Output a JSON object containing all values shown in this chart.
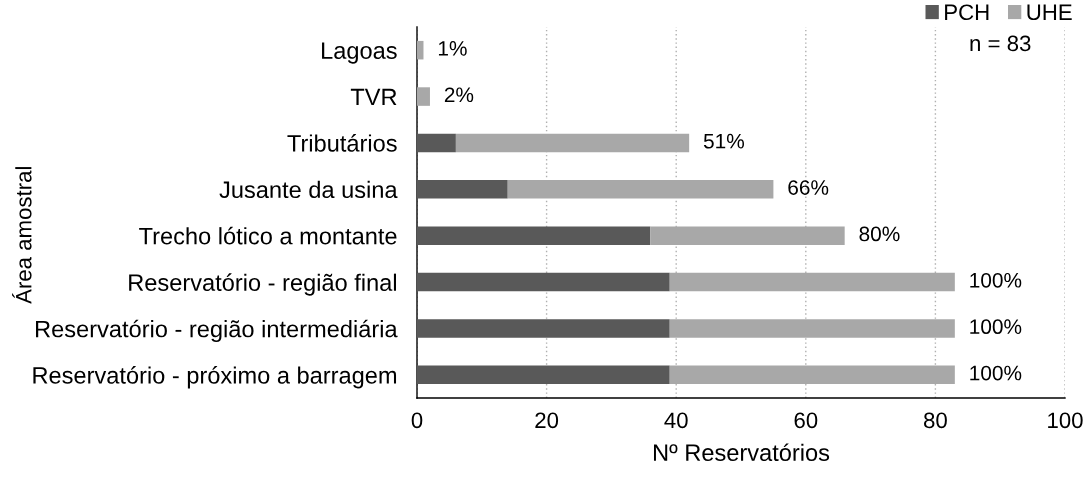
{
  "chart_data": {
    "type": "bar",
    "orientation": "horizontal",
    "stacked": true,
    "xlabel": "Nº Reservatórios",
    "ylabel": "Área amostral",
    "categories": [
      "Lagoas",
      "TVR",
      "Tributários",
      "Jusante da usina",
      "Trecho lótico a montante",
      "Reservatório - região final",
      "Reservatório - região intermediária",
      "Reservatório - próximo a barragem"
    ],
    "series": [
      {
        "name": "PCH",
        "color": "#595959",
        "values": [
          0,
          0,
          6,
          14,
          36,
          39,
          39,
          39
        ]
      },
      {
        "name": "UHE",
        "color": "#a8a8a8",
        "values": [
          1,
          2,
          36,
          41,
          30,
          44,
          44,
          44
        ]
      }
    ],
    "xlim": [
      0,
      100
    ],
    "xticks": [
      0,
      20,
      40,
      60,
      80,
      100
    ],
    "grid": "x",
    "legend": "top right",
    "annotations": [
      "n = 83",
      {
        "text": "1%",
        "x": 1,
        "y": "Lagoas"
      },
      {
        "text": "2%",
        "x": 2,
        "y": "TVR"
      },
      {
        "text": "51%",
        "x": 42,
        "y": "Tributários"
      },
      {
        "text": "66%",
        "x": 55,
        "y": "Jusante da usina"
      },
      {
        "text": "80%",
        "x": 66,
        "y": "Trecho lótico a montante"
      },
      {
        "text": "100%",
        "x": 83,
        "y": "Reservatório - região final"
      },
      {
        "text": "100%",
        "x": 83,
        "y": "Reservatório - região intermediária"
      },
      {
        "text": "100%",
        "x": 83,
        "y": "Reservatório - próximo a barragem"
      }
    ]
  }
}
